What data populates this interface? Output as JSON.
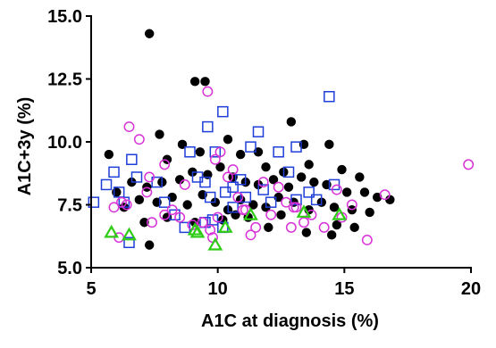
{
  "chart_data": {
    "type": "scatter",
    "xlabel": "A1C at diagnosis (%)",
    "ylabel": "A1C+3y (%)",
    "xlim": [
      5,
      20
    ],
    "ylim": [
      5.0,
      15.0
    ],
    "x_ticks": [
      {
        "value": 5,
        "label": "5"
      },
      {
        "value": 10,
        "label": "10"
      },
      {
        "value": 15,
        "label": "15"
      },
      {
        "value": 20,
        "label": "20"
      }
    ],
    "y_ticks": [
      {
        "value": 5.0,
        "label": "5.0"
      },
      {
        "value": 7.5,
        "label": "7.5"
      },
      {
        "value": 10.0,
        "label": "10.0"
      },
      {
        "value": 12.5,
        "label": "12.5"
      },
      {
        "value": 15.0,
        "label": "15.0"
      }
    ],
    "grid": false,
    "legend": "none",
    "series": [
      {
        "marker": "filled-circle",
        "color": "#000000",
        "points": [
          [
            7.3,
            14.3
          ],
          [
            9.1,
            12.4
          ],
          [
            9.5,
            12.4
          ],
          [
            5.7,
            9.5
          ],
          [
            7.7,
            10.3
          ],
          [
            8.6,
            9.9
          ],
          [
            10.4,
            10.1
          ],
          [
            11.6,
            9.6
          ],
          [
            12.9,
            10.8
          ],
          [
            13.4,
            9.9
          ],
          [
            14.4,
            9.9
          ],
          [
            8.0,
            9.3
          ],
          [
            9.3,
            9.6
          ],
          [
            10.9,
            9.5
          ],
          [
            11.9,
            9.0
          ],
          [
            12.6,
            8.8
          ],
          [
            13.6,
            9.1
          ],
          [
            14.9,
            8.9
          ],
          [
            15.6,
            8.6
          ],
          [
            6.0,
            8.0
          ],
          [
            6.6,
            8.4
          ],
          [
            7.2,
            8.2
          ],
          [
            7.8,
            8.4
          ],
          [
            8.5,
            8.5
          ],
          [
            9.0,
            8.8
          ],
          [
            9.6,
            8.7
          ],
          [
            10.1,
            9.0
          ],
          [
            10.6,
            8.6
          ],
          [
            11.1,
            8.4
          ],
          [
            11.6,
            8.3
          ],
          [
            12.2,
            8.5
          ],
          [
            12.8,
            8.2
          ],
          [
            13.3,
            8.6
          ],
          [
            13.8,
            8.4
          ],
          [
            14.3,
            8.3
          ],
          [
            15.1,
            8.0
          ],
          [
            15.8,
            8.0
          ],
          [
            16.3,
            7.8
          ],
          [
            16.8,
            7.7
          ],
          [
            6.3,
            7.4
          ],
          [
            6.9,
            7.7
          ],
          [
            7.6,
            7.6
          ],
          [
            8.2,
            7.8
          ],
          [
            8.8,
            7.5
          ],
          [
            9.4,
            7.9
          ],
          [
            9.9,
            7.6
          ],
          [
            10.4,
            7.3
          ],
          [
            10.9,
            7.7
          ],
          [
            11.4,
            7.5
          ],
          [
            11.9,
            7.4
          ],
          [
            12.4,
            7.8
          ],
          [
            13.0,
            7.6
          ],
          [
            13.6,
            7.3
          ],
          [
            14.1,
            7.6
          ],
          [
            14.6,
            7.4
          ],
          [
            15.3,
            7.3
          ],
          [
            16.0,
            7.2
          ],
          [
            7.1,
            6.8
          ],
          [
            8.0,
            7.0
          ],
          [
            9.1,
            6.8
          ],
          [
            10.2,
            6.9
          ],
          [
            11.2,
            7.0
          ],
          [
            12.0,
            6.6
          ],
          [
            13.5,
            6.4
          ],
          [
            14.5,
            6.3
          ],
          [
            15.4,
            6.6
          ],
          [
            7.3,
            5.9
          ],
          [
            10.7,
            7.1
          ],
          [
            12.5,
            7.1
          ],
          [
            14.7,
            6.7
          ]
        ]
      },
      {
        "marker": "open-square",
        "color": "#1f3fd8",
        "points": [
          [
            5.1,
            7.6
          ],
          [
            5.6,
            8.3
          ],
          [
            5.9,
            8.8
          ],
          [
            6.1,
            8.0
          ],
          [
            6.3,
            7.6
          ],
          [
            6.6,
            9.3
          ],
          [
            6.8,
            8.6
          ],
          [
            6.5,
            6.0
          ],
          [
            7.6,
            8.4
          ],
          [
            7.9,
            7.6
          ],
          [
            8.3,
            7.1
          ],
          [
            8.7,
            6.6
          ],
          [
            8.9,
            9.6
          ],
          [
            9.2,
            8.6
          ],
          [
            9.5,
            8.4
          ],
          [
            9.7,
            7.8
          ],
          [
            9.5,
            6.8
          ],
          [
            9.6,
            10.6
          ],
          [
            9.9,
            9.6
          ],
          [
            10.2,
            11.2
          ],
          [
            10.3,
            8.0
          ],
          [
            10.6,
            8.2
          ],
          [
            10.6,
            7.4
          ],
          [
            10.9,
            8.5
          ],
          [
            11.1,
            7.8
          ],
          [
            10.2,
            6.6
          ],
          [
            11.3,
            9.8
          ],
          [
            11.6,
            10.4
          ],
          [
            11.8,
            8.1
          ],
          [
            12.1,
            7.6
          ],
          [
            12.4,
            9.6
          ],
          [
            12.8,
            8.8
          ],
          [
            13.1,
            9.8
          ],
          [
            13.1,
            7.7
          ],
          [
            13.6,
            8.0
          ],
          [
            13.9,
            7.7
          ],
          [
            14.4,
            11.8
          ],
          [
            14.6,
            8.3
          ],
          [
            9.8,
            6.9
          ]
        ]
      },
      {
        "marker": "open-circle",
        "color": "#d733d7",
        "points": [
          [
            6.5,
            10.6
          ],
          [
            6.9,
            10.1
          ],
          [
            7.3,
            8.6
          ],
          [
            7.9,
            9.1
          ],
          [
            5.9,
            7.4
          ],
          [
            6.2,
            7.6
          ],
          [
            6.4,
            7.5
          ],
          [
            7.2,
            8.0
          ],
          [
            7.4,
            6.8
          ],
          [
            7.9,
            7.1
          ],
          [
            8.5,
            7.0
          ],
          [
            9.0,
            6.7
          ],
          [
            9.4,
            6.8
          ],
          [
            9.7,
            6.5
          ],
          [
            9.6,
            12.0
          ],
          [
            9.9,
            9.3
          ],
          [
            10.1,
            9.6
          ],
          [
            10.4,
            8.6
          ],
          [
            10.6,
            8.9
          ],
          [
            10.8,
            7.8
          ],
          [
            11.1,
            7.3
          ],
          [
            11.3,
            6.3
          ],
          [
            11.8,
            8.4
          ],
          [
            12.1,
            7.1
          ],
          [
            12.4,
            8.2
          ],
          [
            12.7,
            7.6
          ],
          [
            13.1,
            7.4
          ],
          [
            13.4,
            6.8
          ],
          [
            13.7,
            7.1
          ],
          [
            14.2,
            6.6
          ],
          [
            14.7,
            8.1
          ],
          [
            15.3,
            7.5
          ],
          [
            15.9,
            6.1
          ],
          [
            16.6,
            7.9
          ],
          [
            19.9,
            9.1
          ],
          [
            8.7,
            8.3
          ],
          [
            10.0,
            7.0
          ],
          [
            11.5,
            6.6
          ],
          [
            12.9,
            6.6
          ],
          [
            14.9,
            7.0
          ],
          [
            6.1,
            6.2
          ],
          [
            8.2,
            7.3
          ],
          [
            9.8,
            6.2
          ],
          [
            11.0,
            7.3
          ],
          [
            13.0,
            7.4
          ]
        ]
      },
      {
        "marker": "open-triangle",
        "color": "#2ecc14",
        "points": [
          [
            5.8,
            6.4
          ],
          [
            6.5,
            6.3
          ],
          [
            9.1,
            6.5
          ],
          [
            9.2,
            6.4
          ],
          [
            9.9,
            5.9
          ],
          [
            10.3,
            6.6
          ],
          [
            11.3,
            7.1
          ],
          [
            13.4,
            7.2
          ],
          [
            14.8,
            7.1
          ]
        ]
      }
    ]
  }
}
